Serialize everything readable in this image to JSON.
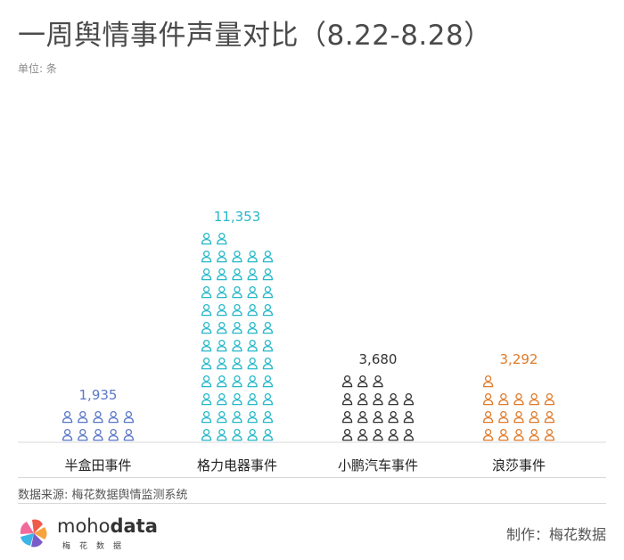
{
  "header": {
    "title": "一周舆情事件声量对比（8.22-8.28）",
    "unit": "单位: 条"
  },
  "footer": {
    "source": "数据来源: 梅花数据舆情监测系统",
    "logo_name_light": "moho",
    "logo_name_bold": "data",
    "logo_sub": "梅花数据",
    "credit": "制作：梅花数据"
  },
  "colors": {
    "series": [
      "#5a78c8",
      "#26b8c8",
      "#333333",
      "#e07b2a"
    ],
    "axis": "#d8d8d8"
  },
  "chart_data": {
    "type": "bar",
    "subtype": "pictogram",
    "icon": "person-icon",
    "categories": [
      "半盒田事件",
      "格力电器事件",
      "小鹏汽车事件",
      "浪莎事件"
    ],
    "values": [
      1935,
      11353,
      3680,
      3292
    ],
    "value_labels": [
      "1,935",
      "11,353",
      "3,680",
      "3,292"
    ],
    "title": "一周舆情事件声量对比（8.22-8.28）",
    "ylabel": "单位: 条",
    "ylim": [
      0,
      12000
    ],
    "grid": false,
    "legend": "none"
  }
}
